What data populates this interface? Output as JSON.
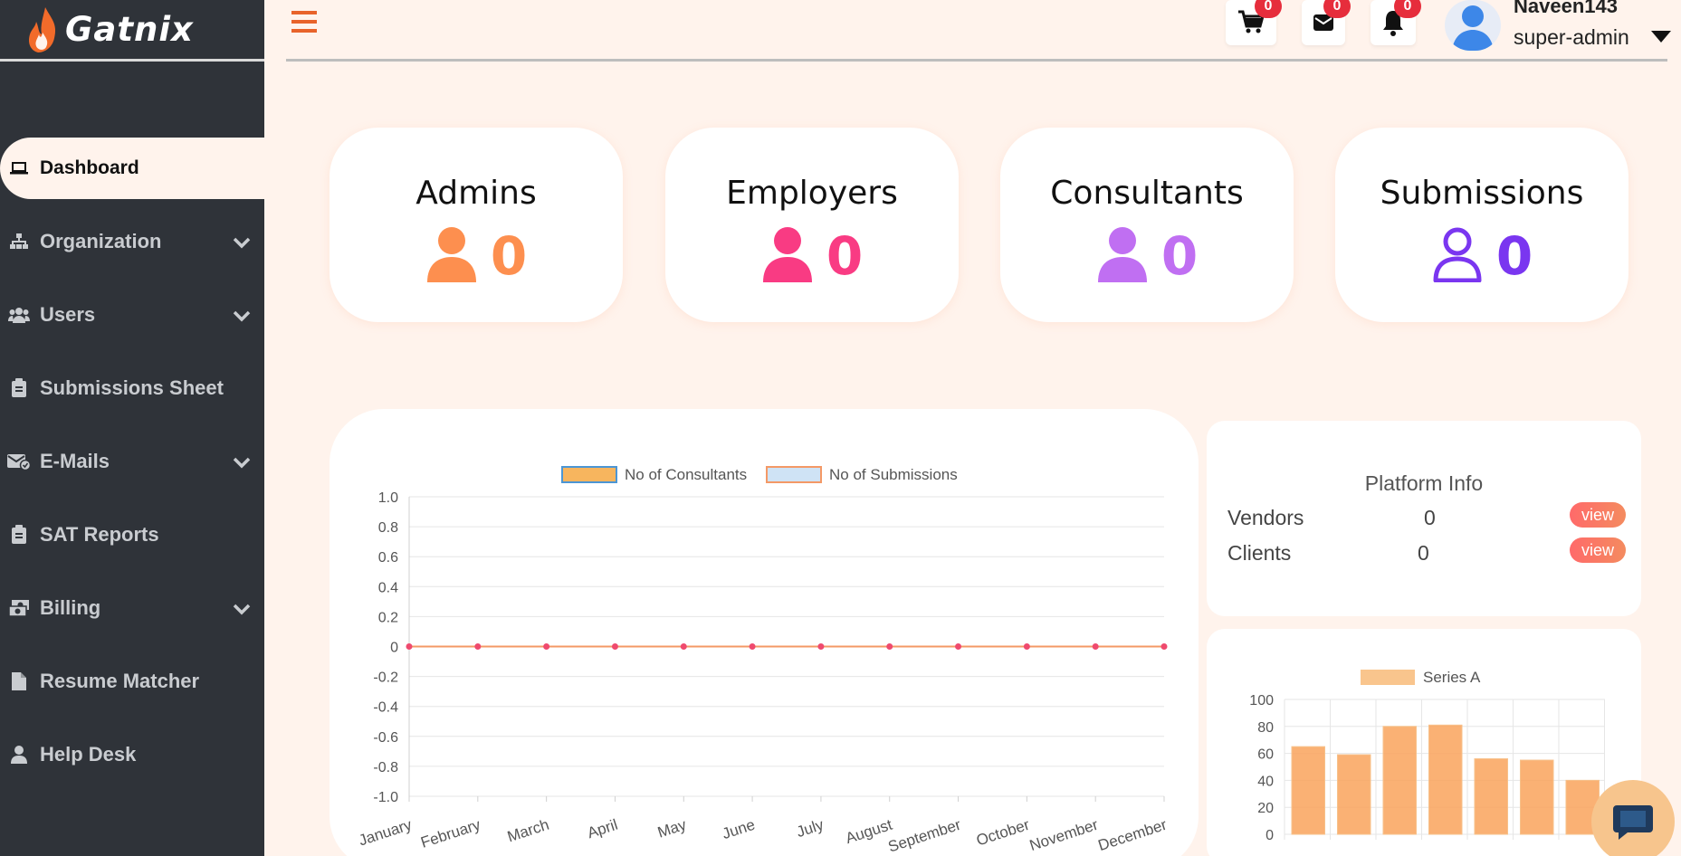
{
  "brand": {
    "name": "Gatnix"
  },
  "sidebar": {
    "items": [
      {
        "label": "Dashboard",
        "icon": "laptop-icon",
        "active": true,
        "has_chevron": false
      },
      {
        "label": "Organization",
        "icon": "sitemap-icon",
        "has_chevron": true
      },
      {
        "label": "Users",
        "icon": "users-icon",
        "has_chevron": true
      },
      {
        "label": "Submissions Sheet",
        "icon": "clipboard-icon",
        "has_chevron": false
      },
      {
        "label": "E-Mails",
        "icon": "mail-check-icon",
        "has_chevron": true
      },
      {
        "label": "SAT Reports",
        "icon": "clipboard-icon",
        "has_chevron": false
      },
      {
        "label": "Billing",
        "icon": "money-icon",
        "has_chevron": true
      },
      {
        "label": "Resume Matcher",
        "icon": "file-icon",
        "has_chevron": false
      },
      {
        "label": "Help Desk",
        "icon": "user-icon",
        "has_chevron": false
      }
    ]
  },
  "header": {
    "cart_count": "0",
    "mail_count": "0",
    "bell_count": "0",
    "user_name": "Naveen143",
    "user_role": "super-admin"
  },
  "stats": [
    {
      "title": "Admins",
      "value": "0",
      "color": "#fd8f4f"
    },
    {
      "title": "Employers",
      "value": "0",
      "color": "#f93b83"
    },
    {
      "title": "Consultants",
      "value": "0",
      "color": "#c06ff2"
    },
    {
      "title": "Submissions",
      "value": "0",
      "color": "#7a36f0"
    }
  ],
  "platform_info": {
    "title": "Platform Info",
    "rows": [
      {
        "label": "Vendors",
        "value": "0",
        "action": "view"
      },
      {
        "label": "Clients",
        "value": "0",
        "action": "view"
      }
    ]
  },
  "chart_data": [
    {
      "type": "line",
      "categories": [
        "January",
        "February",
        "March",
        "April",
        "May",
        "June",
        "July",
        "August",
        "September",
        "October",
        "November",
        "December"
      ],
      "series": [
        {
          "name": "No of Consultants",
          "values": [
            0,
            0,
            0,
            0,
            0,
            0,
            0,
            0,
            0,
            0,
            0,
            0
          ],
          "color": "#f7b55e"
        },
        {
          "name": "No of Submissions",
          "values": [
            0,
            0,
            0,
            0,
            0,
            0,
            0,
            0,
            0,
            0,
            0,
            0
          ],
          "color": "#cfe3f5"
        }
      ],
      "ylim": [
        -1.0,
        1.0
      ],
      "yticks": [
        "1.0",
        "0.8",
        "0.6",
        "0.4",
        "0.2",
        "0",
        "-0.2",
        "-0.4",
        "-0.6",
        "-0.8",
        "-1.0"
      ],
      "legend": "top",
      "grid": true
    },
    {
      "type": "bar",
      "series": [
        {
          "name": "Series A",
          "values": [
            65,
            59,
            80,
            81,
            56,
            55,
            40
          ],
          "color": "#f9a35c"
        }
      ],
      "ylim": [
        0,
        100
      ],
      "yticks": [
        "100",
        "80",
        "60",
        "40",
        "20",
        "0"
      ],
      "legend": "top",
      "grid": true
    }
  ]
}
